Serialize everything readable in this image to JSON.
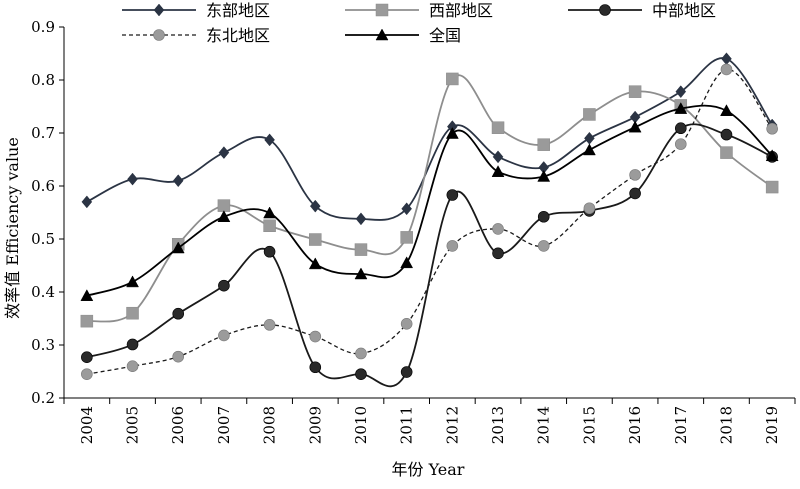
{
  "chart_data": {
    "type": "line",
    "title": "",
    "xlabel": "年份 Year",
    "ylabel": "效率值 Efficiency value",
    "ylim": [
      0.2,
      0.9
    ],
    "yticks": [
      "0.2",
      "0.3",
      "0.4",
      "0.5",
      "0.6",
      "0.7",
      "0.8",
      "0.9"
    ],
    "categories": [
      "2004",
      "2005",
      "2006",
      "2007",
      "2008",
      "2009",
      "2010",
      "2011",
      "2012",
      "2013",
      "2014",
      "2015",
      "2016",
      "2017",
      "2018",
      "2019"
    ],
    "legend": {
      "position": "top"
    },
    "grid": false,
    "series": [
      {
        "name": "东部地区",
        "color": "#2b3444",
        "marker": "diamond",
        "dash": "solid",
        "values": [
          0.57,
          0.613,
          0.61,
          0.663,
          0.687,
          0.562,
          0.538,
          0.557,
          0.712,
          0.655,
          0.635,
          0.69,
          0.73,
          0.778,
          0.84,
          0.715
        ]
      },
      {
        "name": "西部地区",
        "color": "#8e8e8e",
        "marker": "square",
        "dash": "solid",
        "values": [
          0.345,
          0.36,
          0.49,
          0.563,
          0.525,
          0.499,
          0.48,
          0.503,
          0.802,
          0.71,
          0.678,
          0.735,
          0.778,
          0.752,
          0.663,
          0.598
        ]
      },
      {
        "name": "中部地区",
        "color": "#1a1a1a",
        "marker": "circle-dark",
        "dash": "solid",
        "values": [
          0.277,
          0.301,
          0.359,
          0.412,
          0.476,
          0.258,
          0.245,
          0.249,
          0.583,
          0.473,
          0.542,
          0.553,
          0.586,
          0.709,
          0.697,
          0.655
        ]
      },
      {
        "name": "东北地区",
        "color": "#1a1a1a",
        "marker": "circle-gray",
        "dash": "dashed",
        "values": [
          0.245,
          0.26,
          0.278,
          0.318,
          0.338,
          0.316,
          0.284,
          0.34,
          0.487,
          0.519,
          0.487,
          0.558,
          0.621,
          0.679,
          0.82,
          0.708
        ]
      },
      {
        "name": "全国",
        "color": "#000000",
        "marker": "triangle",
        "dash": "solid",
        "values": [
          0.393,
          0.419,
          0.483,
          0.542,
          0.549,
          0.453,
          0.434,
          0.455,
          0.699,
          0.627,
          0.618,
          0.668,
          0.711,
          0.746,
          0.742,
          0.657
        ]
      }
    ]
  }
}
